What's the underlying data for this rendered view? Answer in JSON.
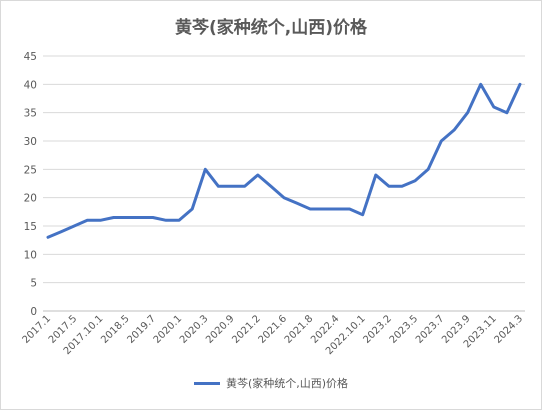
{
  "chart_data": {
    "type": "line",
    "title": "黄芩(家种统个,山西)价格",
    "xlabel": "",
    "ylabel": "",
    "ylim": [
      0,
      45
    ],
    "yticks": [
      "0",
      "5",
      "10",
      "15",
      "20",
      "25",
      "30",
      "35",
      "40",
      "45"
    ],
    "x": [
      "2017.1",
      "",
      "2017.5",
      "",
      "2017.10.1",
      "",
      "2018.5",
      "",
      "2019.7",
      "",
      "2020.1",
      "",
      "2020.3",
      "",
      "2020.9",
      "",
      "2021.2",
      "",
      "2021.6",
      "",
      "2021.8",
      "",
      "2022.4",
      "",
      "2022.10.1",
      "",
      "2023.2",
      "",
      "2023.5",
      "",
      "2023.7",
      "",
      "2023.9",
      "",
      "2023.11",
      "",
      "2024.3"
    ],
    "xticks": [
      "2017.1",
      "2017.5",
      "2017.10.1",
      "2018.5",
      "2019.7",
      "2020.1",
      "2020.3",
      "2020.9",
      "2021.2",
      "2021.6",
      "2021.8",
      "2022.4",
      "2022.10.1",
      "2023.2",
      "2023.5",
      "2023.7",
      "2023.9",
      "2023.11",
      "2024.3"
    ],
    "series": [
      {
        "name": "黄芩(家种统个,山西)价格",
        "color": "#4472c4",
        "values": [
          13,
          14,
          15,
          16,
          16,
          16.5,
          16.5,
          16.5,
          16.5,
          16,
          16,
          18,
          25,
          22,
          22,
          22,
          24,
          22,
          20,
          19,
          18,
          18,
          18,
          18,
          17,
          24,
          22,
          22,
          23,
          25,
          30,
          32,
          35,
          40,
          36,
          35,
          40
        ]
      }
    ],
    "grid": true,
    "legend": "bottom"
  }
}
